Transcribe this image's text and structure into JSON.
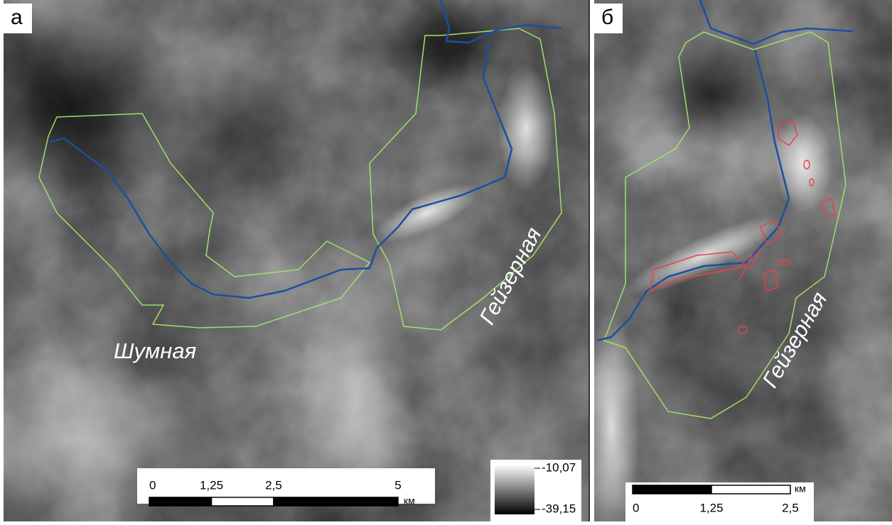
{
  "panels": [
    {
      "label": "а",
      "river_labels": [
        "Шумная",
        "Гейзерная"
      ],
      "scale_bar": {
        "ticks": [
          {
            "value": 0,
            "label": "0"
          },
          {
            "value": 1.25,
            "label": "1,25"
          },
          {
            "value": 2.5,
            "label": "2,5"
          },
          {
            "value": 5,
            "label": "5"
          }
        ],
        "unit": "км"
      }
    },
    {
      "label": "б",
      "river_labels": [
        "Гейзерная"
      ],
      "scale_bar": {
        "ticks": [
          {
            "value": 0,
            "label": "0"
          },
          {
            "value": 1.25,
            "label": "1,25"
          },
          {
            "value": 2.5,
            "label": "2,5"
          }
        ],
        "unit": "км"
      }
    }
  ],
  "legend": {
    "max": {
      "value": -10.07,
      "label": "-10,07"
    },
    "min": {
      "value": -39.15,
      "label": "-39,15"
    }
  }
}
